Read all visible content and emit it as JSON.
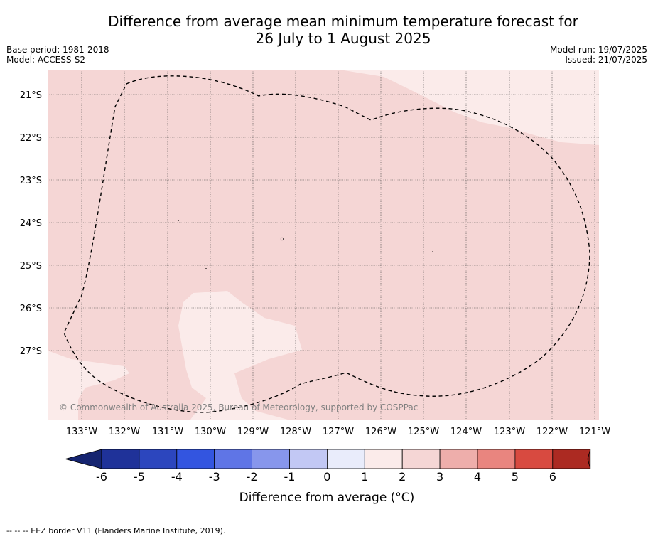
{
  "title_line1": "Difference from average mean minimum temperature forecast for",
  "title_line2": "26 July to 1 August 2025",
  "base_period": "Base period: 1981-2018",
  "model": "Model: ACCESS-S2",
  "model_run": "Model run: 19/07/2025",
  "issued": "Issued: 21/07/2025",
  "copyright": "© Commonwealth of Australia 2025, Bureau of Meteorology, supported by COSPPac",
  "lat_labels": [
    "21°S",
    "22°S",
    "23°S",
    "24°S",
    "25°S",
    "26°S",
    "27°S"
  ],
  "lon_labels": [
    "133°W",
    "132°W",
    "131°W",
    "130°W",
    "129°W",
    "128°W",
    "127°W",
    "126°W",
    "125°W",
    "124°W",
    "123°W",
    "122°W",
    "121°W"
  ],
  "colorbar": {
    "label": "Difference from average (°C)",
    "ticks": [
      "-6",
      "-5",
      "-4",
      "-3",
      "-2",
      "-1",
      "0",
      "1",
      "2",
      "3",
      "4",
      "5",
      "6"
    ],
    "colors": [
      "#1f3299",
      "#2c46be",
      "#3355e0",
      "#5f75e6",
      "#8796ec",
      "#c2c8f4",
      "#e9ecfb",
      "#fbebea",
      "#f5d6d5",
      "#eeaeab",
      "#e9857f",
      "#d84a40",
      "#ac2a22"
    ],
    "under_color": "#152470",
    "over_color": "#7a1b17",
    "colors_shown": {
      "land_fill": "#f5d6d5",
      "light_fill": "#fbebea"
    }
  },
  "footer_legend": "--  --  -- EEZ border V11 (Flanders Marine Institute, 2019)."
}
